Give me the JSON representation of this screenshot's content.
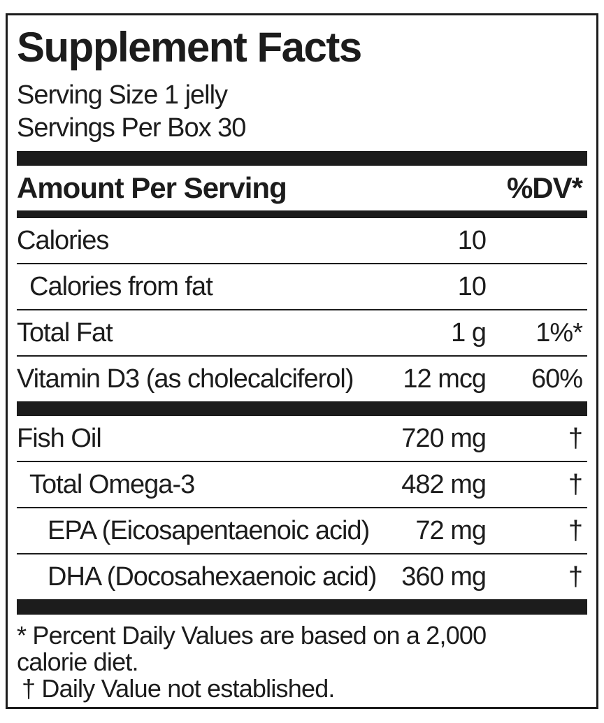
{
  "label": {
    "title": "Supplement Facts",
    "serving_lines": [
      "Serving Size 1 jelly",
      "Servings Per Box 30"
    ],
    "columns": {
      "amount_header": "Amount Per Serving",
      "dv_header": "%DV*"
    },
    "rows": [
      {
        "name": "Calories",
        "indent": 0,
        "amount": "10",
        "dv": "",
        "section_break_before": false
      },
      {
        "name": "Calories from fat",
        "indent": 1,
        "amount": "10",
        "dv": "",
        "section_break_before": false
      },
      {
        "name": "Total Fat",
        "indent": 0,
        "amount": "1 g",
        "dv": "1%*",
        "section_break_before": false
      },
      {
        "name": "Vitamin D3 (as cholecalciferol)",
        "indent": 0,
        "amount": "12 mcg",
        "dv": "60%",
        "section_break_before": false
      },
      {
        "name": "Fish Oil",
        "indent": 0,
        "amount": "720 mg",
        "dv": "†",
        "section_break_before": true
      },
      {
        "name": "Total Omega-3",
        "indent": 1,
        "amount": "482 mg",
        "dv": "†",
        "section_break_before": false
      },
      {
        "name": "EPA (Eicosapentaenoic acid)",
        "indent": 2,
        "amount": "72 mg",
        "dv": "†",
        "section_break_before": false
      },
      {
        "name": "DHA (Docosahexaenoic acid)",
        "indent": 2,
        "amount": "360 mg",
        "dv": "†",
        "section_break_before": false
      }
    ],
    "footnotes": [
      "* Percent Daily Values are based on a 2,000",
      "calorie diet.",
      "† Daily Value not established."
    ],
    "colors": {
      "ink": "#1c1c1c",
      "background": "#ffffff"
    }
  }
}
